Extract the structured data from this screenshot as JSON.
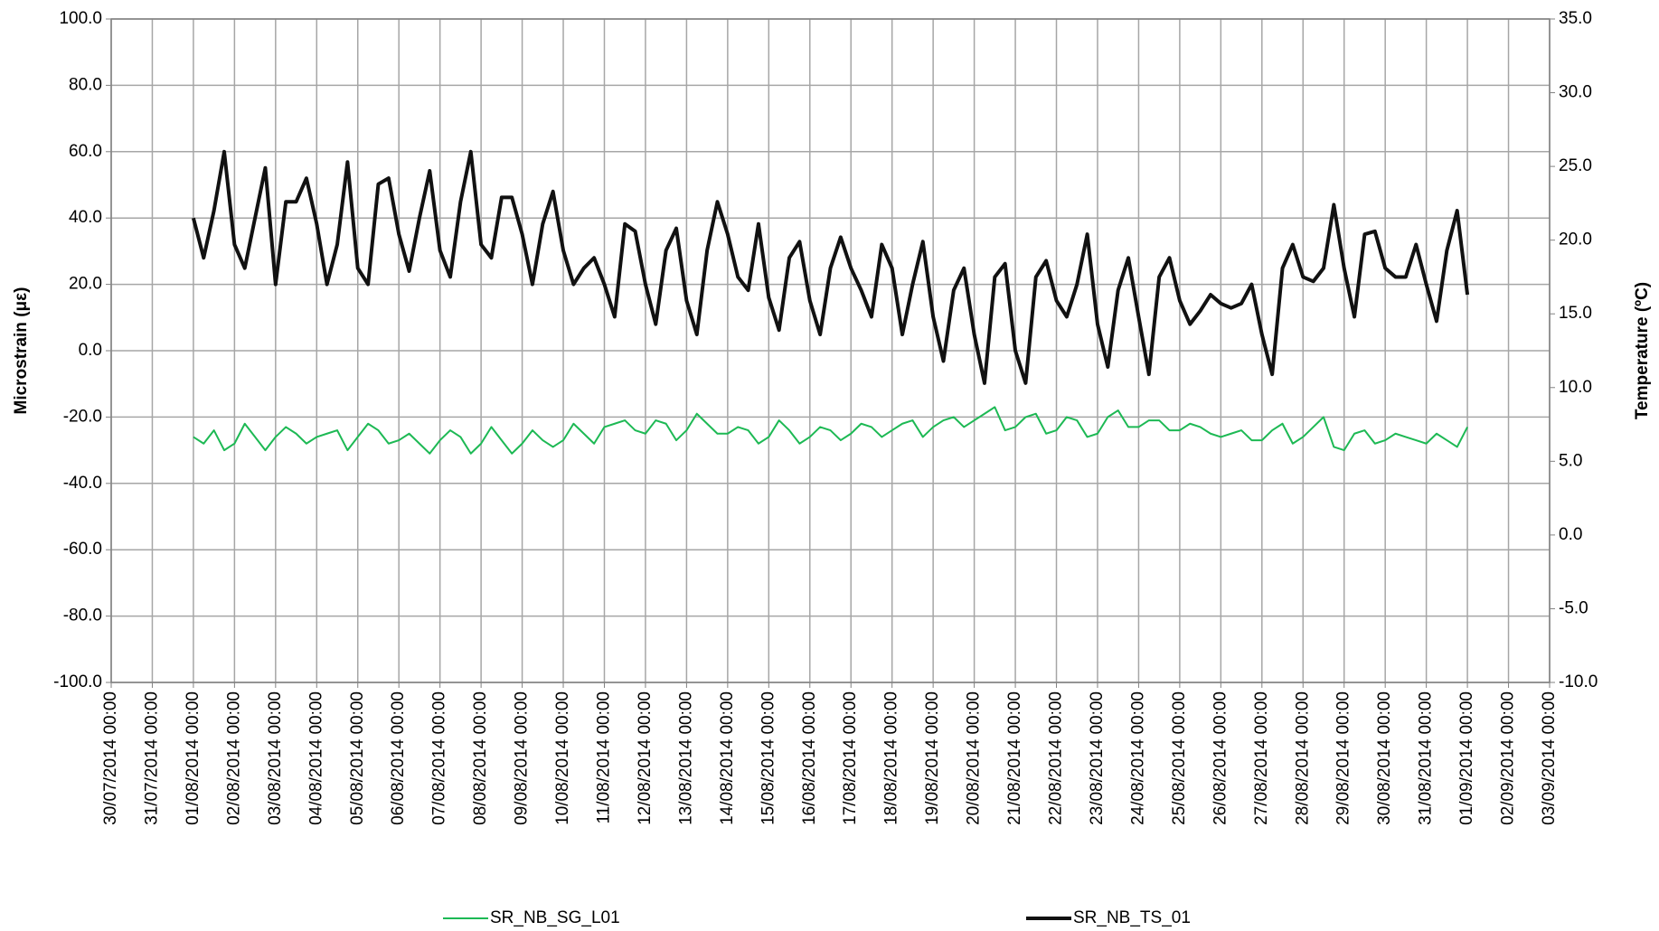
{
  "chart_data": {
    "type": "line",
    "y_label": "Microstrain (με)",
    "y2_label": "Temperature (ºC)",
    "grid": true,
    "legend": "bottom",
    "xlim": [
      "30/07/2014 00:00",
      "03/09/2014 00:00"
    ],
    "xticks": [
      "30/07/2014 00:00",
      "31/07/2014 00:00",
      "01/08/2014 00:00",
      "02/08/2014 00:00",
      "03/08/2014 00:00",
      "04/08/2014 00:00",
      "05/08/2014 00:00",
      "06/08/2014 00:00",
      "07/08/2014 00:00",
      "08/08/2014 00:00",
      "09/08/2014 00:00",
      "10/08/2014 00:00",
      "11/08/2014 00:00",
      "12/08/2014 00:00",
      "13/08/2014 00:00",
      "14/08/2014 00:00",
      "15/08/2014 00:00",
      "16/08/2014 00:00",
      "17/08/2014 00:00",
      "18/08/2014 00:00",
      "19/08/2014 00:00",
      "20/08/2014 00:00",
      "21/08/2014 00:00",
      "22/08/2014 00:00",
      "23/08/2014 00:00",
      "24/08/2014 00:00",
      "25/08/2014 00:00",
      "26/08/2014 00:00",
      "27/08/2014 00:00",
      "28/08/2014 00:00",
      "29/08/2014 00:00",
      "30/08/2014 00:00",
      "31/08/2014 00:00",
      "01/09/2014 00:00",
      "02/09/2014 00:00",
      "03/09/2014 00:00"
    ],
    "ylim": [
      -100,
      100
    ],
    "yticks": [
      {
        "value": -100,
        "label": "-100.0"
      },
      {
        "value": -80,
        "label": "-80.0"
      },
      {
        "value": -60,
        "label": "-60.0"
      },
      {
        "value": -40,
        "label": "-40.0"
      },
      {
        "value": -20,
        "label": "-20.0"
      },
      {
        "value": 0,
        "label": "0.0"
      },
      {
        "value": 20,
        "label": "20.0"
      },
      {
        "value": 40,
        "label": "40.0"
      },
      {
        "value": 60,
        "label": "60.0"
      },
      {
        "value": 80,
        "label": "80.0"
      },
      {
        "value": 100,
        "label": "100.0"
      }
    ],
    "y2lim": [
      -10,
      35
    ],
    "y2ticks": [
      {
        "value": -10,
        "label": "-10.0"
      },
      {
        "value": -5,
        "label": "-5.0"
      },
      {
        "value": 0,
        "label": "0.0"
      },
      {
        "value": 5,
        "label": "5.0"
      },
      {
        "value": 10,
        "label": "10.0"
      },
      {
        "value": 15,
        "label": "15.0"
      },
      {
        "value": 20,
        "label": "20.0"
      },
      {
        "value": 25,
        "label": "25.0"
      },
      {
        "value": 30,
        "label": "30.0"
      },
      {
        "value": 35,
        "label": "35.0"
      }
    ],
    "x": [
      "01/08/2014 00:00",
      "01/08/2014 06:00",
      "01/08/2014 12:00",
      "01/08/2014 18:00",
      "02/08/2014 00:00",
      "02/08/2014 06:00",
      "02/08/2014 12:00",
      "02/08/2014 18:00",
      "03/08/2014 00:00",
      "03/08/2014 06:00",
      "03/08/2014 12:00",
      "03/08/2014 18:00",
      "04/08/2014 00:00",
      "04/08/2014 06:00",
      "04/08/2014 12:00",
      "04/08/2014 18:00",
      "05/08/2014 00:00",
      "05/08/2014 06:00",
      "05/08/2014 12:00",
      "05/08/2014 18:00",
      "06/08/2014 00:00",
      "06/08/2014 06:00",
      "06/08/2014 12:00",
      "06/08/2014 18:00",
      "07/08/2014 00:00",
      "07/08/2014 06:00",
      "07/08/2014 12:00",
      "07/08/2014 18:00",
      "08/08/2014 00:00",
      "08/08/2014 06:00",
      "08/08/2014 12:00",
      "08/08/2014 18:00",
      "09/08/2014 00:00",
      "09/08/2014 06:00",
      "09/08/2014 12:00",
      "09/08/2014 18:00",
      "10/08/2014 00:00",
      "10/08/2014 06:00",
      "10/08/2014 12:00",
      "10/08/2014 18:00",
      "11/08/2014 00:00",
      "11/08/2014 06:00",
      "11/08/2014 12:00",
      "11/08/2014 18:00",
      "12/08/2014 00:00",
      "12/08/2014 06:00",
      "12/08/2014 12:00",
      "12/08/2014 18:00",
      "13/08/2014 00:00",
      "13/08/2014 06:00",
      "13/08/2014 12:00",
      "13/08/2014 18:00",
      "14/08/2014 00:00",
      "14/08/2014 06:00",
      "14/08/2014 12:00",
      "14/08/2014 18:00",
      "15/08/2014 00:00",
      "15/08/2014 06:00",
      "15/08/2014 12:00",
      "15/08/2014 18:00",
      "16/08/2014 00:00",
      "16/08/2014 06:00",
      "16/08/2014 12:00",
      "16/08/2014 18:00",
      "17/08/2014 00:00",
      "17/08/2014 06:00",
      "17/08/2014 12:00",
      "17/08/2014 18:00",
      "18/08/2014 00:00",
      "18/08/2014 06:00",
      "18/08/2014 12:00",
      "18/08/2014 18:00",
      "19/08/2014 00:00",
      "19/08/2014 06:00",
      "19/08/2014 12:00",
      "19/08/2014 18:00",
      "20/08/2014 00:00",
      "20/08/2014 06:00",
      "20/08/2014 12:00",
      "20/08/2014 18:00",
      "21/08/2014 00:00",
      "21/08/2014 06:00",
      "21/08/2014 12:00",
      "21/08/2014 18:00",
      "22/08/2014 00:00",
      "22/08/2014 06:00",
      "22/08/2014 12:00",
      "22/08/2014 18:00",
      "23/08/2014 00:00",
      "23/08/2014 06:00",
      "23/08/2014 12:00",
      "23/08/2014 18:00",
      "24/08/2014 00:00",
      "24/08/2014 06:00",
      "24/08/2014 12:00",
      "24/08/2014 18:00",
      "25/08/2014 00:00",
      "25/08/2014 06:00",
      "25/08/2014 12:00",
      "25/08/2014 18:00",
      "26/08/2014 00:00",
      "26/08/2014 06:00",
      "26/08/2014 12:00",
      "26/08/2014 18:00",
      "27/08/2014 00:00",
      "27/08/2014 06:00",
      "27/08/2014 12:00",
      "27/08/2014 18:00",
      "28/08/2014 00:00",
      "28/08/2014 06:00",
      "28/08/2014 12:00",
      "28/08/2014 18:00",
      "29/08/2014 00:00",
      "29/08/2014 06:00",
      "29/08/2014 12:00",
      "29/08/2014 18:00",
      "30/08/2014 00:00",
      "30/08/2014 06:00",
      "30/08/2014 12:00",
      "30/08/2014 18:00",
      "31/08/2014 00:00",
      "31/08/2014 06:00",
      "31/08/2014 12:00",
      "31/08/2014 18:00",
      "01/09/2014 00:00"
    ],
    "series": [
      {
        "name": "SR_NB_SG_L01",
        "color": "#1db954",
        "axis": "y",
        "width": 2,
        "values": [
          -26,
          -28,
          -24,
          -30,
          -28,
          -22,
          -26,
          -30,
          -26,
          -23,
          -25,
          -28,
          -26,
          -25,
          -24,
          -30,
          -26,
          -22,
          -24,
          -28,
          -27,
          -25,
          -28,
          -31,
          -27,
          -24,
          -26,
          -31,
          -28,
          -23,
          -27,
          -31,
          -28,
          -24,
          -27,
          -29,
          -27,
          -22,
          -25,
          -28,
          -23,
          -22,
          -21,
          -24,
          -25,
          -21,
          -22,
          -27,
          -24,
          -19,
          -22,
          -25,
          -25,
          -23,
          -24,
          -28,
          -26,
          -21,
          -24,
          -28,
          -26,
          -23,
          -24,
          -27,
          -25,
          -22,
          -23,
          -26,
          -24,
          -22,
          -21,
          -26,
          -23,
          -21,
          -20,
          -23,
          -21,
          -19,
          -17,
          -24,
          -23,
          -20,
          -19,
          -25,
          -24,
          -20,
          -21,
          -26,
          -25,
          -20,
          -18,
          -23,
          -23,
          -21,
          -21,
          -24,
          -24,
          -22,
          -23,
          -25,
          -26,
          -25,
          -24,
          -27,
          -27,
          -24,
          -22,
          -28,
          -26,
          -23,
          -20,
          -29,
          -30,
          -25,
          -24,
          -28,
          -27,
          -25,
          -26,
          -27,
          -28,
          -25,
          -27,
          -29,
          -23
        ]
      },
      {
        "name": "SR_NB_TS_01",
        "color": "#111111",
        "axis": "y2",
        "width": 4,
        "values": [
          21.5,
          18.8,
          22.0,
          26.0,
          19.7,
          18.1,
          21.5,
          24.9,
          17.0,
          22.6,
          22.6,
          24.2,
          21.1,
          17.0,
          19.7,
          25.3,
          18.1,
          17.0,
          23.8,
          24.2,
          20.4,
          17.9,
          21.5,
          24.7,
          19.3,
          17.5,
          22.6,
          26.0,
          19.7,
          18.8,
          22.9,
          22.9,
          20.4,
          17.0,
          21.1,
          23.3,
          19.3,
          17.0,
          18.1,
          18.8,
          17.0,
          14.8,
          21.1,
          20.6,
          17.0,
          14.3,
          19.3,
          20.8,
          15.9,
          13.6,
          19.3,
          22.6,
          20.4,
          17.5,
          16.6,
          21.1,
          16.1,
          13.9,
          18.8,
          19.9,
          15.9,
          13.6,
          18.1,
          20.2,
          18.1,
          16.6,
          14.8,
          19.7,
          18.1,
          13.6,
          17.0,
          19.9,
          14.8,
          11.8,
          16.6,
          18.1,
          13.6,
          10.3,
          17.5,
          18.4,
          12.5,
          10.3,
          17.5,
          18.6,
          15.9,
          14.8,
          17.0,
          20.4,
          14.3,
          11.4,
          16.6,
          18.8,
          14.8,
          10.9,
          17.5,
          18.8,
          15.9,
          14.3,
          15.2,
          16.3,
          15.7,
          15.4,
          15.7,
          17.0,
          13.6,
          10.9,
          18.1,
          19.7,
          17.5,
          17.2,
          18.1,
          22.4,
          18.1,
          14.8,
          20.4,
          20.6,
          18.1,
          17.5,
          17.5,
          19.7,
          17.0,
          14.5,
          19.3,
          22.0,
          16.3
        ]
      }
    ]
  }
}
